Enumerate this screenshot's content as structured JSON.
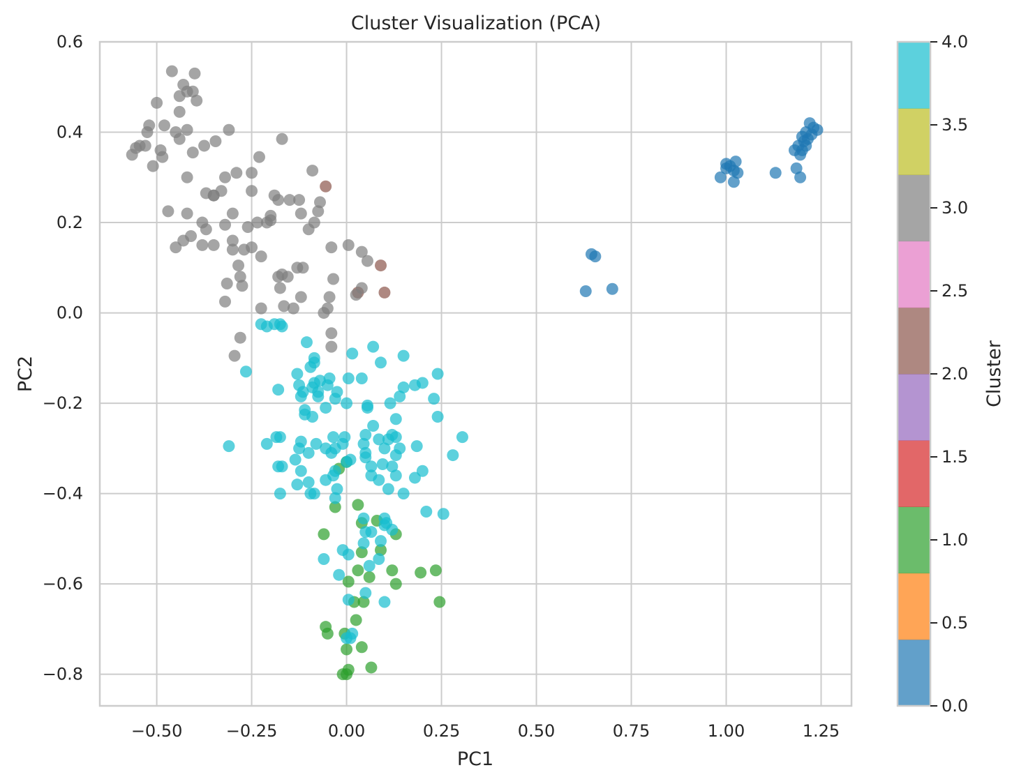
{
  "chart_data": {
    "type": "scatter",
    "title": "Cluster Visualization (PCA)",
    "xlabel": "PC1",
    "ylabel": "PC2",
    "xlim": [
      -0.65,
      1.33
    ],
    "ylim": [
      -0.87,
      0.6
    ],
    "xticks": [
      "−0.50",
      "−0.25",
      "0.00",
      "0.25",
      "0.50",
      "0.75",
      "1.00",
      "1.25"
    ],
    "xtick_values": [
      -0.5,
      -0.25,
      0.0,
      0.25,
      0.5,
      0.75,
      1.0,
      1.25
    ],
    "yticks": [
      "0.6",
      "0.4",
      "0.2",
      "0.0",
      "−0.2",
      "−0.4",
      "−0.6",
      "−0.8"
    ],
    "ytick_values": [
      0.6,
      0.4,
      0.2,
      0.0,
      -0.2,
      -0.4,
      -0.6,
      -0.8
    ],
    "grid": true,
    "colorbar": {
      "label": "Cluster",
      "range": [
        0.0,
        4.0
      ],
      "ticks": [
        "0.0",
        "0.5",
        "1.0",
        "1.5",
        "2.0",
        "2.5",
        "3.0",
        "3.5",
        "4.0"
      ],
      "tick_values": [
        0.0,
        0.5,
        1.0,
        1.5,
        2.0,
        2.5,
        3.0,
        3.5,
        4.0
      ],
      "colors": [
        "#1f77b4",
        "#ff7f0e",
        "#2ca02c",
        "#d62728",
        "#9467bd",
        "#8c564b",
        "#e377c2",
        "#7f7f7f",
        "#bcbd22",
        "#17becf"
      ]
    },
    "series": [
      {
        "cluster": 0,
        "color": "#1f77b4",
        "points": [
          [
            1.22,
            0.42
          ],
          [
            1.21,
            0.4
          ],
          [
            1.23,
            0.41
          ],
          [
            1.24,
            0.405
          ],
          [
            1.2,
            0.39
          ],
          [
            1.215,
            0.385
          ],
          [
            1.225,
            0.395
          ],
          [
            1.205,
            0.38
          ],
          [
            1.19,
            0.37
          ],
          [
            1.2,
            0.36
          ],
          [
            1.18,
            0.36
          ],
          [
            1.21,
            0.37
          ],
          [
            1.195,
            0.35
          ],
          [
            1.185,
            0.32
          ],
          [
            1.195,
            0.3
          ],
          [
            1.13,
            0.31
          ],
          [
            1.0,
            0.33
          ],
          [
            1.01,
            0.325
          ],
          [
            1.02,
            0.315
          ],
          [
            1.03,
            0.31
          ],
          [
            1.025,
            0.335
          ],
          [
            1.02,
            0.29
          ],
          [
            0.985,
            0.3
          ],
          [
            1.0,
            0.32
          ],
          [
            0.645,
            0.13
          ],
          [
            0.655,
            0.125
          ],
          [
            0.63,
            0.048
          ],
          [
            0.7,
            0.053
          ]
        ]
      },
      {
        "cluster": 1,
        "color": "#2ca02c",
        "points": [
          [
            -0.03,
            -0.43
          ],
          [
            -0.06,
            -0.49
          ],
          [
            -0.05,
            -0.71
          ],
          [
            -0.055,
            -0.695
          ],
          [
            -0.01,
            -0.8
          ],
          [
            0.0,
            -0.8
          ],
          [
            0.005,
            -0.79
          ],
          [
            0.0,
            -0.745
          ],
          [
            -0.005,
            -0.71
          ],
          [
            0.025,
            -0.68
          ],
          [
            0.04,
            -0.74
          ],
          [
            0.065,
            -0.785
          ],
          [
            0.02,
            -0.64
          ],
          [
            0.045,
            -0.64
          ],
          [
            0.005,
            -0.595
          ],
          [
            0.03,
            -0.57
          ],
          [
            0.06,
            -0.585
          ],
          [
            0.09,
            -0.525
          ],
          [
            0.12,
            -0.57
          ],
          [
            0.13,
            -0.6
          ],
          [
            0.195,
            -0.575
          ],
          [
            0.235,
            -0.57
          ],
          [
            0.245,
            -0.64
          ],
          [
            0.13,
            -0.49
          ],
          [
            0.08,
            -0.46
          ],
          [
            0.04,
            -0.465
          ],
          [
            0.03,
            -0.425
          ],
          [
            -0.02,
            -0.345
          ],
          [
            0.0,
            -0.33
          ],
          [
            0.04,
            -0.53
          ]
        ]
      },
      {
        "cluster": 2,
        "color": "#8c564b",
        "points": [
          [
            -0.055,
            0.28
          ],
          [
            0.09,
            0.105
          ],
          [
            0.1,
            0.045
          ],
          [
            0.03,
            0.045
          ]
        ]
      },
      {
        "cluster": 3,
        "color": "#7f7f7f",
        "points": [
          [
            -0.46,
            0.535
          ],
          [
            -0.4,
            0.53
          ],
          [
            -0.405,
            0.49
          ],
          [
            -0.42,
            0.49
          ],
          [
            -0.44,
            0.48
          ],
          [
            -0.43,
            0.505
          ],
          [
            -0.5,
            0.465
          ],
          [
            -0.44,
            0.445
          ],
          [
            -0.395,
            0.47
          ],
          [
            -0.48,
            0.415
          ],
          [
            -0.52,
            0.415
          ],
          [
            -0.525,
            0.4
          ],
          [
            -0.545,
            0.37
          ],
          [
            -0.555,
            0.365
          ],
          [
            -0.565,
            0.35
          ],
          [
            -0.53,
            0.37
          ],
          [
            -0.49,
            0.36
          ],
          [
            -0.485,
            0.345
          ],
          [
            -0.51,
            0.325
          ],
          [
            -0.42,
            0.405
          ],
          [
            -0.42,
            0.3
          ],
          [
            -0.44,
            0.385
          ],
          [
            -0.405,
            0.355
          ],
          [
            -0.375,
            0.37
          ],
          [
            -0.345,
            0.38
          ],
          [
            -0.31,
            0.405
          ],
          [
            -0.45,
            0.4
          ],
          [
            -0.17,
            0.385
          ],
          [
            -0.23,
            0.345
          ],
          [
            -0.25,
            0.31
          ],
          [
            -0.29,
            0.31
          ],
          [
            -0.32,
            0.3
          ],
          [
            -0.35,
            0.26
          ],
          [
            -0.33,
            0.27
          ],
          [
            -0.37,
            0.265
          ],
          [
            -0.25,
            0.27
          ],
          [
            -0.18,
            0.25
          ],
          [
            -0.15,
            0.25
          ],
          [
            -0.125,
            0.25
          ],
          [
            -0.19,
            0.26
          ],
          [
            -0.09,
            0.315
          ],
          [
            -0.12,
            0.22
          ],
          [
            -0.07,
            0.245
          ],
          [
            -0.075,
            0.225
          ],
          [
            -0.085,
            0.2
          ],
          [
            -0.1,
            0.185
          ],
          [
            -0.2,
            0.205
          ],
          [
            -0.2,
            0.215
          ],
          [
            -0.21,
            0.2
          ],
          [
            -0.235,
            0.2
          ],
          [
            -0.26,
            0.19
          ],
          [
            -0.3,
            0.22
          ],
          [
            -0.32,
            0.195
          ],
          [
            -0.38,
            0.2
          ],
          [
            -0.38,
            0.15
          ],
          [
            -0.35,
            0.15
          ],
          [
            -0.41,
            0.17
          ],
          [
            -0.43,
            0.16
          ],
          [
            -0.45,
            0.145
          ],
          [
            -0.37,
            0.185
          ],
          [
            -0.3,
            0.16
          ],
          [
            -0.3,
            0.14
          ],
          [
            -0.27,
            0.14
          ],
          [
            -0.25,
            0.145
          ],
          [
            -0.225,
            0.125
          ],
          [
            -0.35,
            0.26
          ],
          [
            -0.42,
            0.22
          ],
          [
            -0.47,
            0.225
          ],
          [
            -0.285,
            0.105
          ],
          [
            -0.28,
            0.08
          ],
          [
            -0.275,
            0.06
          ],
          [
            -0.315,
            0.065
          ],
          [
            -0.32,
            0.025
          ],
          [
            -0.18,
            0.08
          ],
          [
            -0.17,
            0.085
          ],
          [
            -0.155,
            0.08
          ],
          [
            -0.175,
            0.055
          ],
          [
            -0.13,
            0.1
          ],
          [
            -0.115,
            0.1
          ],
          [
            -0.12,
            0.035
          ],
          [
            -0.04,
            0.145
          ],
          [
            0.005,
            0.15
          ],
          [
            0.04,
            0.135
          ],
          [
            0.055,
            0.115
          ],
          [
            -0.035,
            0.075
          ],
          [
            0.04,
            0.055
          ],
          [
            0.025,
            0.04
          ],
          [
            -0.045,
            0.035
          ],
          [
            -0.05,
            0.01
          ],
          [
            -0.06,
            0.0
          ],
          [
            -0.14,
            0.01
          ],
          [
            -0.165,
            0.015
          ],
          [
            -0.225,
            0.01
          ],
          [
            -0.04,
            -0.045
          ],
          [
            -0.04,
            -0.075
          ],
          [
            -0.28,
            -0.055
          ],
          [
            -0.295,
            -0.095
          ]
        ]
      },
      {
        "cluster": 4,
        "color": "#17becf",
        "points": [
          [
            -0.225,
            -0.025
          ],
          [
            -0.21,
            -0.03
          ],
          [
            -0.19,
            -0.025
          ],
          [
            -0.175,
            -0.025
          ],
          [
            -0.17,
            -0.03
          ],
          [
            -0.105,
            -0.065
          ],
          [
            -0.085,
            -0.1
          ],
          [
            -0.085,
            -0.11
          ],
          [
            -0.095,
            -0.12
          ],
          [
            -0.085,
            -0.155
          ],
          [
            -0.07,
            -0.15
          ],
          [
            -0.075,
            -0.175
          ],
          [
            -0.09,
            -0.165
          ],
          [
            -0.13,
            -0.135
          ],
          [
            -0.125,
            -0.16
          ],
          [
            -0.115,
            -0.175
          ],
          [
            -0.12,
            -0.185
          ],
          [
            -0.045,
            -0.145
          ],
          [
            -0.05,
            -0.16
          ],
          [
            -0.025,
            -0.175
          ],
          [
            -0.03,
            -0.19
          ],
          [
            -0.055,
            -0.21
          ],
          [
            -0.075,
            -0.185
          ],
          [
            -0.09,
            -0.23
          ],
          [
            -0.11,
            -0.215
          ],
          [
            -0.11,
            -0.225
          ],
          [
            -0.18,
            -0.17
          ],
          [
            -0.265,
            -0.13
          ],
          [
            0.015,
            -0.09
          ],
          [
            0.07,
            -0.075
          ],
          [
            0.09,
            -0.11
          ],
          [
            0.15,
            -0.095
          ],
          [
            0.005,
            -0.145
          ],
          [
            0.04,
            -0.145
          ],
          [
            0.0,
            -0.2
          ],
          [
            0.055,
            -0.205
          ],
          [
            0.055,
            -0.21
          ],
          [
            0.115,
            -0.2
          ],
          [
            0.14,
            -0.185
          ],
          [
            0.15,
            -0.165
          ],
          [
            0.18,
            -0.16
          ],
          [
            0.2,
            -0.155
          ],
          [
            0.24,
            -0.135
          ],
          [
            0.23,
            -0.19
          ],
          [
            0.24,
            -0.23
          ],
          [
            0.13,
            -0.235
          ],
          [
            0.07,
            -0.25
          ],
          [
            0.05,
            -0.27
          ],
          [
            0.045,
            -0.29
          ],
          [
            0.05,
            -0.31
          ],
          [
            0.085,
            -0.28
          ],
          [
            0.11,
            -0.28
          ],
          [
            0.1,
            -0.3
          ],
          [
            0.12,
            -0.27
          ],
          [
            0.13,
            -0.275
          ],
          [
            0.14,
            -0.3
          ],
          [
            0.13,
            -0.315
          ],
          [
            0.185,
            -0.295
          ],
          [
            0.2,
            -0.35
          ],
          [
            0.18,
            -0.365
          ],
          [
            0.28,
            -0.315
          ],
          [
            0.305,
            -0.275
          ],
          [
            -0.31,
            -0.295
          ],
          [
            -0.21,
            -0.29
          ],
          [
            -0.185,
            -0.275
          ],
          [
            -0.175,
            -0.275
          ],
          [
            -0.18,
            -0.34
          ],
          [
            -0.17,
            -0.34
          ],
          [
            -0.175,
            -0.4
          ],
          [
            -0.135,
            -0.325
          ],
          [
            -0.12,
            -0.285
          ],
          [
            -0.125,
            -0.3
          ],
          [
            -0.12,
            -0.35
          ],
          [
            -0.1,
            -0.31
          ],
          [
            -0.08,
            -0.29
          ],
          [
            -0.055,
            -0.3
          ],
          [
            -0.04,
            -0.31
          ],
          [
            -0.03,
            -0.3
          ],
          [
            -0.035,
            -0.275
          ],
          [
            -0.005,
            -0.275
          ],
          [
            -0.01,
            -0.29
          ],
          [
            -0.035,
            -0.36
          ],
          [
            -0.03,
            -0.35
          ],
          [
            0.0,
            -0.33
          ],
          [
            0.01,
            -0.325
          ],
          [
            0.05,
            -0.32
          ],
          [
            0.065,
            -0.34
          ],
          [
            0.065,
            -0.36
          ],
          [
            0.085,
            -0.37
          ],
          [
            0.095,
            -0.335
          ],
          [
            0.12,
            -0.34
          ],
          [
            0.13,
            -0.36
          ],
          [
            0.11,
            -0.39
          ],
          [
            0.15,
            -0.4
          ],
          [
            -0.13,
            -0.38
          ],
          [
            -0.1,
            -0.375
          ],
          [
            -0.095,
            -0.4
          ],
          [
            -0.085,
            -0.4
          ],
          [
            -0.055,
            -0.37
          ],
          [
            -0.025,
            -0.39
          ],
          [
            -0.03,
            -0.41
          ],
          [
            0.045,
            -0.455
          ],
          [
            0.05,
            -0.485
          ],
          [
            0.065,
            -0.485
          ],
          [
            0.1,
            -0.455
          ],
          [
            0.105,
            -0.465
          ],
          [
            0.1,
            -0.47
          ],
          [
            0.12,
            -0.48
          ],
          [
            0.09,
            -0.505
          ],
          [
            0.045,
            -0.51
          ],
          [
            0.085,
            -0.545
          ],
          [
            0.06,
            -0.56
          ],
          [
            0.21,
            -0.44
          ],
          [
            0.255,
            -0.445
          ],
          [
            -0.06,
            -0.545
          ],
          [
            -0.01,
            -0.525
          ],
          [
            0.005,
            -0.535
          ],
          [
            -0.02,
            -0.58
          ],
          [
            0.05,
            -0.62
          ],
          [
            0.1,
            -0.64
          ],
          [
            0.005,
            -0.635
          ],
          [
            0.015,
            -0.71
          ],
          [
            0.01,
            -0.72
          ],
          [
            0.0,
            -0.72
          ]
        ]
      }
    ]
  }
}
